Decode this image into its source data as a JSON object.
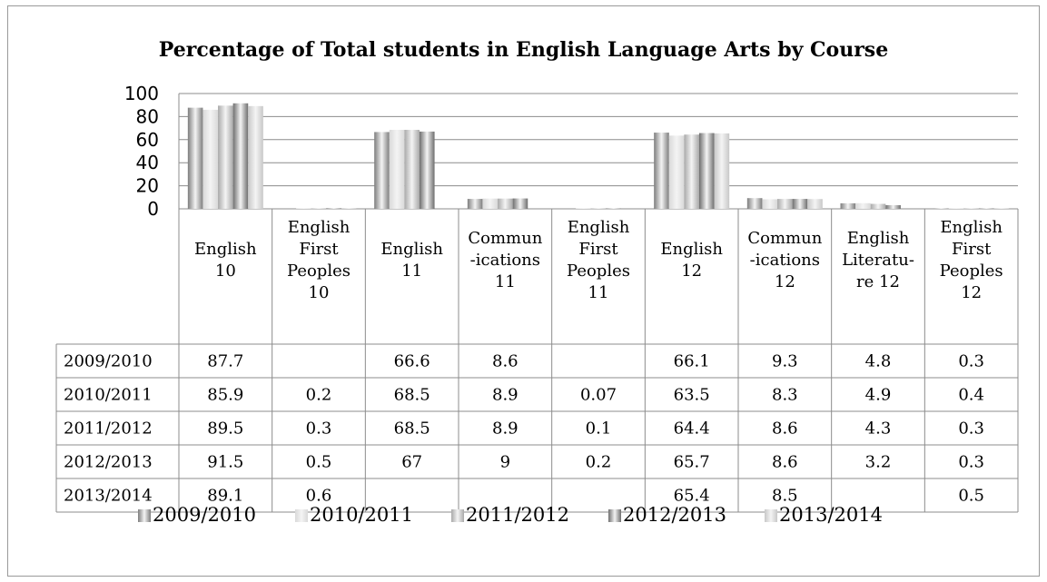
{
  "chart_data": {
    "type": "bar",
    "title": "Percentage of Total students in English Language Arts by Course",
    "ylim": [
      0,
      100
    ],
    "yticks": [
      "100",
      "80",
      "60",
      "40",
      "20",
      "0"
    ],
    "categories": [
      [
        "English",
        "10"
      ],
      [
        "English",
        "First",
        "Peoples",
        "10"
      ],
      [
        "English",
        "11"
      ],
      [
        "Commun",
        "-ications",
        "11"
      ],
      [
        "English",
        "First",
        "Peoples",
        "11"
      ],
      [
        "English",
        "12"
      ],
      [
        "Commun",
        "-ications",
        "12"
      ],
      [
        "English",
        "Literatu-",
        "re 12"
      ],
      [
        "English",
        "First",
        "Peoples",
        "12"
      ]
    ],
    "series": [
      {
        "name": "2009/2010",
        "values": [
          87.7,
          null,
          66.6,
          8.6,
          null,
          66.1,
          9.3,
          4.8,
          0.3
        ],
        "labels": [
          "87.7",
          "",
          "66.6",
          "8.6",
          "",
          "66.1",
          "9.3",
          "4.8",
          "0.3"
        ]
      },
      {
        "name": "2010/2011",
        "values": [
          85.9,
          0.2,
          68.5,
          8.9,
          0.07,
          63.5,
          8.3,
          4.9,
          0.4
        ],
        "labels": [
          "85.9",
          "0.2",
          "68.5",
          "8.9",
          "0.07",
          "63.5",
          "8.3",
          "4.9",
          "0.4"
        ]
      },
      {
        "name": "2011/2012",
        "values": [
          89.5,
          0.3,
          68.5,
          8.9,
          0.1,
          64.4,
          8.6,
          4.3,
          0.3
        ],
        "labels": [
          "89.5",
          "0.3",
          "68.5",
          "8.9",
          "0.1",
          "64.4",
          "8.6",
          "4.3",
          "0.3"
        ]
      },
      {
        "name": "2012/2013",
        "values": [
          91.5,
          0.5,
          67,
          9,
          0.2,
          65.7,
          8.6,
          3.2,
          0.3
        ],
        "labels": [
          "91.5",
          "0.5",
          "67",
          "9",
          "0.2",
          "65.7",
          "8.6",
          "3.2",
          "0.3"
        ]
      },
      {
        "name": "2013/2014",
        "values": [
          89.1,
          0.6,
          null,
          null,
          null,
          65.4,
          8.5,
          null,
          0.5
        ],
        "labels": [
          "89.1",
          "0.6",
          "",
          "",
          "",
          "65.4",
          "8.5",
          "",
          "0.5"
        ]
      }
    ],
    "colors": [
      "#7d7d7d",
      "#d9d9d9",
      "#a9a9a9",
      "#6e6e6e",
      "#c8c8c8"
    ],
    "grid": true,
    "legend": "bottom"
  }
}
